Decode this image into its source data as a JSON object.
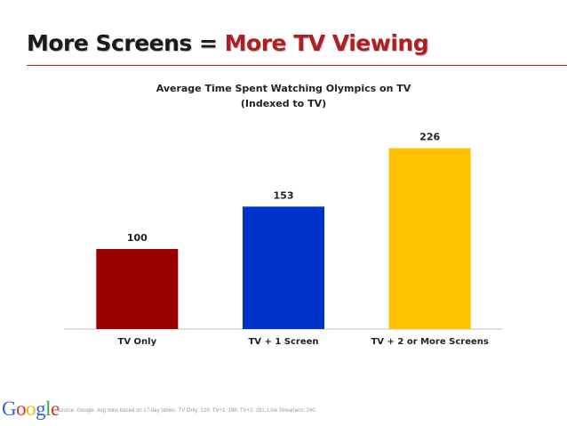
{
  "slide": {
    "title_part1": "More Screens",
    "title_equals": " = ",
    "title_part2": "More TV Viewing",
    "title_part1_color": "#1a1a1a",
    "title_part2_color": "#b01e22",
    "rule_color": "#b8262a"
  },
  "footer": {
    "logo_letters": [
      "G",
      "o",
      "o",
      "g",
      "l",
      "e"
    ],
    "logo_colors": [
      "#3366cc",
      "#dd3322",
      "#eebb00",
      "#3366cc",
      "#33aa44",
      "#dd3322"
    ],
    "source": "Source: Google. Avg mins based on 17-day tables: TV Only: 129; TV+1: 198; TV+2: 291; Live Streamers: 240"
  },
  "chart_data": {
    "type": "bar",
    "title": "Average Time Spent Watching Olympics on TV",
    "subtitle": "(Indexed to TV)",
    "categories": [
      "TV Only",
      "TV + 1 Screen",
      "TV + 2 or More Screens"
    ],
    "values": [
      100,
      153,
      226
    ],
    "data_labels": [
      "100",
      "153",
      "226"
    ],
    "colors": [
      "#990000",
      "#0033cc",
      "#ffc000"
    ],
    "ylim": [
      0,
      250
    ],
    "grid": false,
    "legend": "none"
  }
}
